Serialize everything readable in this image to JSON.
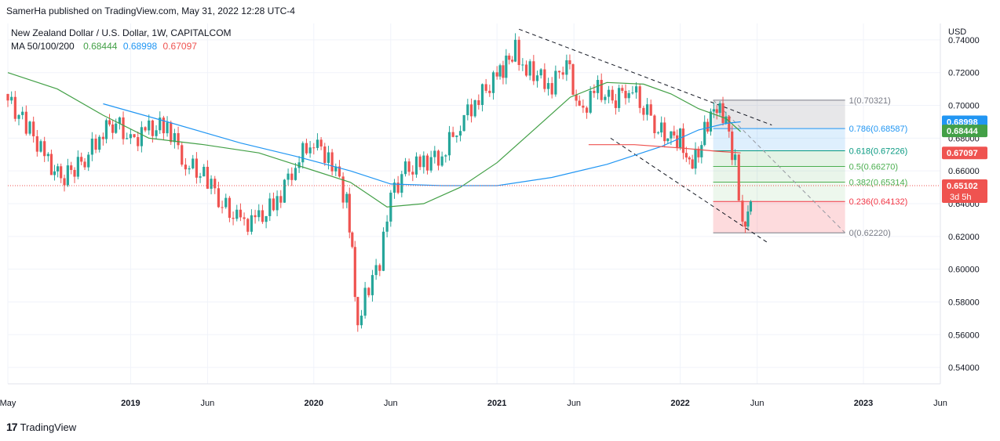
{
  "header": {
    "published": "SamerHa published on TradingView.com, May 31, 2022 12:28 UTC-4"
  },
  "legend": {
    "symbol": "New Zealand Dollar / U.S. Dollar, 1W, CAPITALCOM",
    "ma_label": "MA 50/100/200",
    "ma50": "0.68444",
    "ma100": "0.68998",
    "ma200": "0.67097"
  },
  "footer": {
    "brand": "TradingView",
    "logo": "17"
  },
  "colors": {
    "up": "#26a69a",
    "down": "#ef5350",
    "ma50": "#43a047",
    "ma100": "#2196f3",
    "ma200": "#ef5350",
    "grid": "#f0f3fa",
    "text": "#131722"
  },
  "chart_data": {
    "type": "candlestick",
    "title": "New Zealand Dollar / U.S. Dollar, 1W, CAPITALCOM",
    "currency": "USD",
    "ylim": [
      0.53,
      0.75
    ],
    "y_ticks": [
      "0.74000",
      "0.72000",
      "0.70000",
      "0.68000",
      "0.66000",
      "0.64000",
      "0.62000",
      "0.60000",
      "0.58000",
      "0.56000",
      "0.54000"
    ],
    "y_tick_values": [
      0.74,
      0.72,
      0.7,
      0.68,
      0.66,
      0.64,
      0.62,
      0.6,
      0.58,
      0.56,
      0.54
    ],
    "x_ticks": [
      "May",
      "2019",
      "Jun",
      "2020",
      "Jun",
      "2021",
      "Jun",
      "2022",
      "Jun",
      "2023",
      "Jun"
    ],
    "x_tick_time": [
      2018.33,
      2019.0,
      2019.42,
      2020.0,
      2020.42,
      2021.0,
      2021.42,
      2022.0,
      2022.42,
      2023.0,
      2023.42
    ],
    "xlim": [
      2018.33,
      2023.42
    ],
    "price_series": {
      "time": [
        2018.33,
        2018.45,
        2018.55,
        2018.62,
        2018.75,
        2018.85,
        2018.92,
        2019.0,
        2019.1,
        2019.2,
        2019.3,
        2019.42,
        2019.5,
        2019.6,
        2019.7,
        2019.8,
        2019.9,
        2020.0,
        2020.06,
        2020.12,
        2020.18,
        2020.21,
        2020.24,
        2020.3,
        2020.36,
        2020.42,
        2020.5,
        2020.6,
        2020.7,
        2020.8,
        2020.9,
        2021.0,
        2021.05,
        2021.1,
        2021.14,
        2021.2,
        2021.3,
        2021.38,
        2021.45,
        2021.55,
        2021.63,
        2021.72,
        2021.8,
        2021.88,
        2021.95,
        2022.0,
        2022.05,
        2022.1,
        2022.15,
        2022.2,
        2022.25,
        2022.3,
        2022.34,
        2022.37,
        2022.4
      ],
      "close": [
        0.703,
        0.685,
        0.665,
        0.655,
        0.667,
        0.685,
        0.69,
        0.678,
        0.685,
        0.688,
        0.665,
        0.655,
        0.64,
        0.628,
        0.63,
        0.642,
        0.665,
        0.68,
        0.668,
        0.66,
        0.64,
        0.61,
        0.568,
        0.59,
        0.603,
        0.645,
        0.66,
        0.665,
        0.67,
        0.69,
        0.705,
        0.717,
        0.725,
        0.735,
        0.725,
        0.72,
        0.712,
        0.728,
        0.695,
        0.71,
        0.702,
        0.712,
        0.7,
        0.685,
        0.68,
        0.68,
        0.665,
        0.672,
        0.69,
        0.698,
        0.69,
        0.664,
        0.626,
        0.638,
        0.651
      ]
    },
    "moving_averages": [
      {
        "name": "MA 50",
        "value": 0.68444,
        "time": [
          2018.33,
          2018.6,
          2018.85,
          2019.1,
          2019.4,
          2019.7,
          2019.95,
          2020.2,
          2020.4,
          2020.6,
          2020.8,
          2021.0,
          2021.2,
          2021.4,
          2021.6,
          2021.8,
          2021.95,
          2022.1,
          2022.25,
          2022.33
        ],
        "values": [
          0.72,
          0.71,
          0.694,
          0.68,
          0.676,
          0.671,
          0.662,
          0.653,
          0.638,
          0.64,
          0.65,
          0.665,
          0.685,
          0.705,
          0.714,
          0.713,
          0.707,
          0.698,
          0.692,
          0.684
        ]
      },
      {
        "name": "MA 100",
        "value": 0.68998,
        "time": [
          2018.85,
          2019.2,
          2019.6,
          2019.9,
          2020.2,
          2020.42,
          2020.7,
          2021.0,
          2021.3,
          2021.6,
          2021.9,
          2022.1,
          2022.25,
          2022.33
        ],
        "values": [
          0.701,
          0.69,
          0.677,
          0.669,
          0.66,
          0.652,
          0.651,
          0.651,
          0.656,
          0.664,
          0.675,
          0.685,
          0.689,
          0.69
        ]
      },
      {
        "name": "MA 200",
        "value": 0.67097,
        "time": [
          2021.5,
          2021.75,
          2022.0,
          2022.2,
          2022.33
        ],
        "values": [
          0.676,
          0.676,
          0.674,
          0.672,
          0.671
        ]
      }
    ],
    "fibonacci": [
      {
        "label": "1(0.70321)",
        "level": 0.70321
      },
      {
        "label": "0.786(0.68587)",
        "level": 0.68587
      },
      {
        "label": "0.618(0.67226)",
        "level": 0.67226
      },
      {
        "label": "0.5(0.66270)",
        "level": 0.6627
      },
      {
        "label": "0.382(0.65314)",
        "level": 0.65314
      },
      {
        "label": "0.236(0.64132)",
        "level": 0.64132
      },
      {
        "label": "0(0.62220)",
        "level": 0.6222
      }
    ],
    "price_badges": [
      {
        "value": "0.68998",
        "level": 0.68998,
        "color": "#2196f3"
      },
      {
        "value": "0.68444",
        "level": 0.68444,
        "color": "#43a047"
      },
      {
        "value": "0.67097",
        "level": 0.67097,
        "color": "#ef5350"
      },
      {
        "value": "0.65102",
        "level": 0.65102,
        "color": "#ef5350",
        "sub": "3d 5h"
      }
    ],
    "current_price": 0.65102
  }
}
